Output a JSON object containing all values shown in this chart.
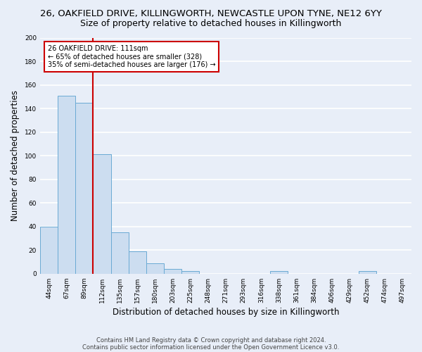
{
  "title_line1": "26, OAKFIELD DRIVE, KILLINGWORTH, NEWCASTLE UPON TYNE, NE12 6YY",
  "title_line2": "Size of property relative to detached houses in Killingworth",
  "xlabel": "Distribution of detached houses by size in Killingworth",
  "ylabel": "Number of detached properties",
  "bar_labels": [
    "44sqm",
    "67sqm",
    "89sqm",
    "112sqm",
    "135sqm",
    "157sqm",
    "180sqm",
    "203sqm",
    "225sqm",
    "248sqm",
    "271sqm",
    "293sqm",
    "316sqm",
    "338sqm",
    "361sqm",
    "384sqm",
    "406sqm",
    "429sqm",
    "452sqm",
    "474sqm",
    "497sqm"
  ],
  "bar_values": [
    40,
    151,
    145,
    101,
    35,
    19,
    9,
    4,
    2,
    0,
    0,
    0,
    0,
    2,
    0,
    0,
    0,
    0,
    2,
    0,
    0
  ],
  "bar_color": "#ccddf0",
  "bar_edge_color": "#6aaad4",
  "bar_edge_width": 0.7,
  "vline_color": "#cc0000",
  "annotation_line1": "26 OAKFIELD DRIVE: 111sqm",
  "annotation_line2": "← 65% of detached houses are smaller (328)",
  "annotation_line3": "35% of semi-detached houses are larger (176) →",
  "annotation_box_color": "#ffffff",
  "annotation_box_edge": "#cc0000",
  "ylim": [
    0,
    200
  ],
  "yticks": [
    0,
    20,
    40,
    60,
    80,
    100,
    120,
    140,
    160,
    180,
    200
  ],
  "fig_background_color": "#e8eef8",
  "plot_background_color": "#e8eef8",
  "grid_color": "#ffffff",
  "footer_line1": "Contains HM Land Registry data © Crown copyright and database right 2024.",
  "footer_line2": "Contains public sector information licensed under the Open Government Licence v3.0.",
  "title_fontsize": 9.5,
  "subtitle_fontsize": 9,
  "axis_label_fontsize": 8.5,
  "tick_fontsize": 6.5,
  "annotation_fontsize": 7,
  "footer_fontsize": 6
}
